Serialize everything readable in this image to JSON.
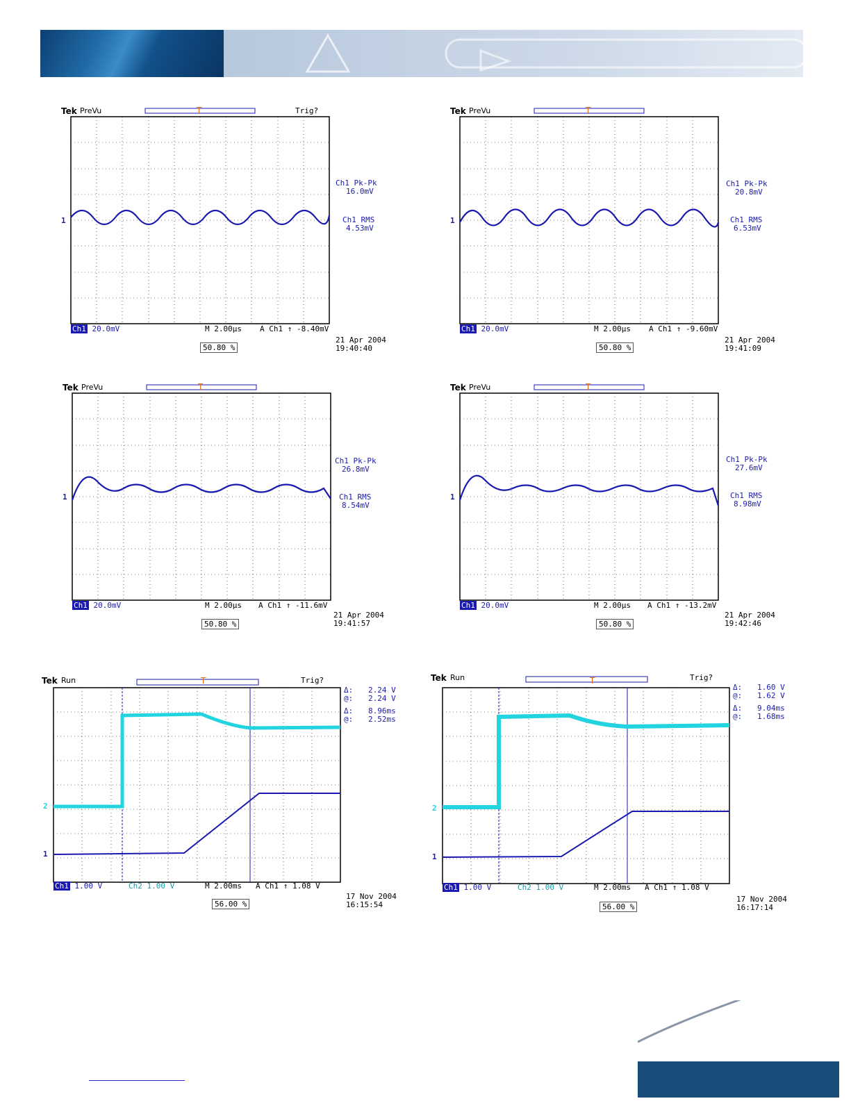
{
  "scopes": [
    {
      "tek": "Tek",
      "mode": "PreVu",
      "trig_status": "Trig?",
      "meas": [
        "Ch1 Pk-Pk",
        "16.0mV",
        "Ch1 RMS",
        "4.53mV"
      ],
      "ch1_label": "Ch1",
      "ch1_scale": "20.0mV",
      "timebase": "M 2.00µs",
      "trigger": "A  Ch1  ↑ -8.40mV",
      "trig_pos": "50.80 %",
      "date": "21 Apr  2004",
      "time": "19:40:40"
    },
    {
      "tek": "Tek",
      "mode": "PreVu",
      "trig_status": "",
      "meas": [
        "Ch1 Pk-Pk",
        "20.8mV",
        "Ch1 RMS",
        "6.53mV"
      ],
      "ch1_label": "Ch1",
      "ch1_scale": "20.0mV",
      "timebase": "M 2.00µs",
      "trigger": "A  Ch1  ↑ -9.60mV",
      "trig_pos": "50.80 %",
      "date": "21 Apr  2004",
      "time": "19:41:09"
    },
    {
      "tek": "Tek",
      "mode": "PreVu",
      "trig_status": "",
      "meas": [
        "Ch1 Pk-Pk",
        "26.8mV",
        "Ch1 RMS",
        "8.54mV"
      ],
      "ch1_label": "Ch1",
      "ch1_scale": "20.0mV",
      "timebase": "M 2.00µs",
      "trigger": "A  Ch1  ↑ -11.6mV",
      "trig_pos": "50.80 %",
      "date": "21 Apr  2004",
      "time": "19:41:57"
    },
    {
      "tek": "Tek",
      "mode": "PreVu",
      "trig_status": "",
      "meas": [
        "Ch1 Pk-Pk",
        "27.6mV",
        "Ch1 RMS",
        "8.98mV"
      ],
      "ch1_label": "Ch1",
      "ch1_scale": "20.0mV",
      "timebase": "M 2.00µs",
      "trigger": "A  Ch1  ↑ -13.2mV",
      "trig_pos": "50.80 %",
      "date": "21 Apr  2004",
      "time": "19:42:46"
    },
    {
      "tek": "Tek",
      "mode": "Run",
      "trig_status": "Trig?",
      "meas": [
        "Δ:",
        "2.24 V",
        "@:",
        "2.24 V",
        "Δ:",
        "8.96ms",
        "@:",
        "2.52ms"
      ],
      "ch1_label": "Ch1",
      "ch1_scale": "1.00 V",
      "ch2_label": "Ch2",
      "ch2_scale": "1.00 V",
      "timebase": "M 2.00ms",
      "trigger": "A  Ch1  ↑   1.08 V",
      "trig_pos": "56.00 %",
      "date": "17 Nov  2004",
      "time": "16:15:54"
    },
    {
      "tek": "Tek",
      "mode": "Run",
      "trig_status": "Trig?",
      "meas": [
        "Δ:",
        "1.60 V",
        "@:",
        "1.62 V",
        "Δ:",
        "9.04ms",
        "@:",
        "1.68ms"
      ],
      "ch1_label": "Ch1",
      "ch1_scale": "1.00 V",
      "ch2_label": "Ch2",
      "ch2_scale": "1.00 V",
      "timebase": "M 2.00ms",
      "trigger": "A  Ch1  ↑   1.08 V",
      "trig_pos": "56.00 %",
      "date": "17 Nov  2004",
      "time": "16:17:14"
    }
  ],
  "colors": {
    "trace_ch1": "#1a1ab0",
    "trace_ch2": "#22d4e0",
    "marker": "#e07010"
  }
}
